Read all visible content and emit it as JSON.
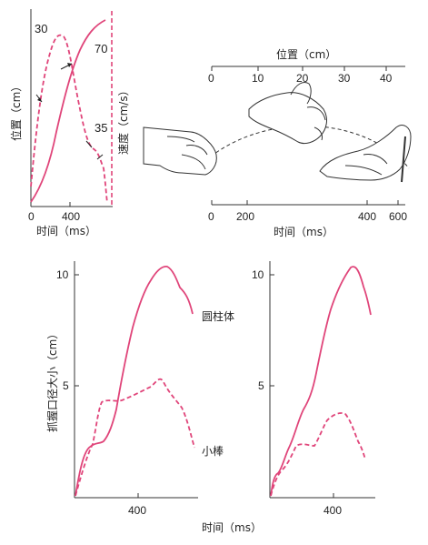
{
  "colors": {
    "curve": "#e0457a",
    "ink": "#222222"
  },
  "panel_a": {
    "ylabel_left": "位置（cm）",
    "ylabel_right": "速度（cm/s）",
    "xlabel": "时间（ms）",
    "xticks": [
      "0",
      "400"
    ],
    "annotations": [
      "30",
      "70",
      "35"
    ]
  },
  "panel_b": {
    "top_axis_label": "位置（cm）",
    "top_ticks": [
      "0",
      "10",
      "20",
      "30",
      "40"
    ],
    "bottom_axis_label": "时间（ms）",
    "bottom_ticks": [
      "0",
      "200",
      "400",
      "600"
    ]
  },
  "panel_c": {
    "ylabel": "抓握口径大小（cm）",
    "xlabel": "时间（ms）",
    "left": {
      "yticks": [
        "10",
        "5"
      ],
      "xticks": [
        "400"
      ],
      "label_solid": "圆柱体",
      "label_dash": "小棒"
    },
    "right": {
      "yticks": [
        "10",
        "5"
      ],
      "xticks": [
        "400"
      ]
    }
  }
}
